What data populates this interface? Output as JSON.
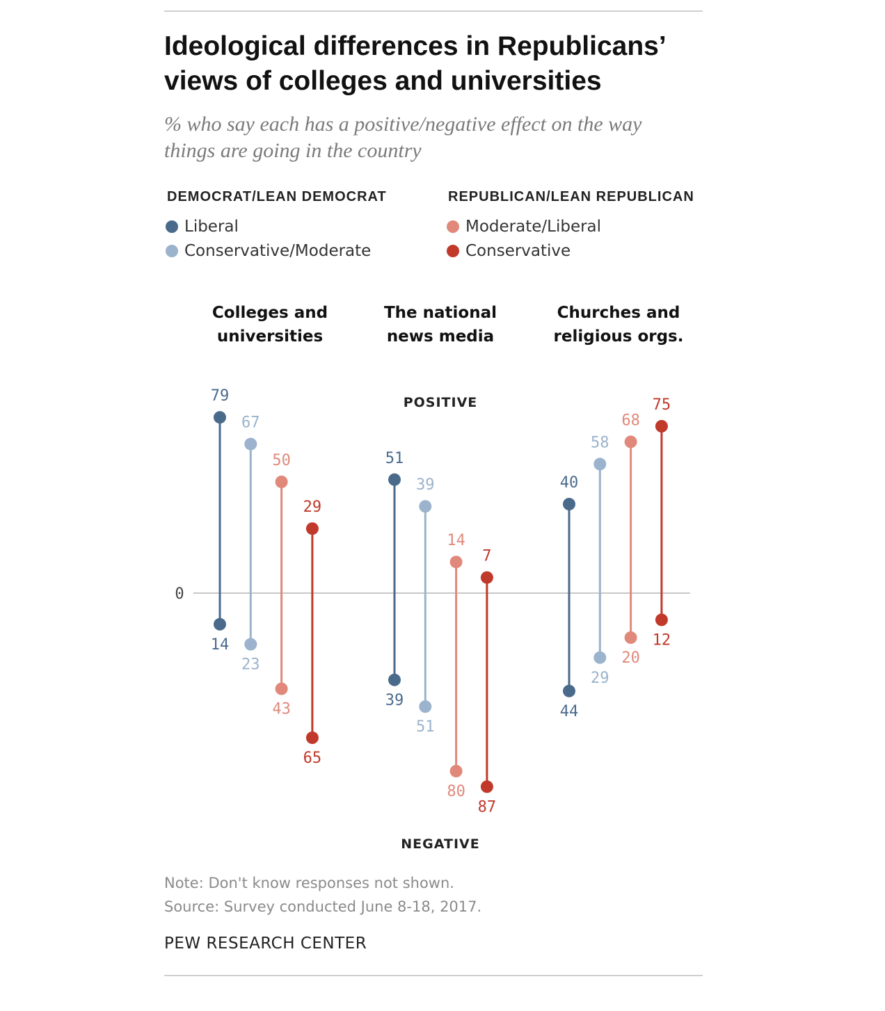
{
  "title": "Ideological differences in Republicans’ views of colleges and universities",
  "subtitle": "% who say each has a positive/negative effect on the way things are going in the country",
  "legend": {
    "groups": [
      {
        "heading": "DEMOCRAT/LEAN DEMOCRAT",
        "items": [
          {
            "label": "Liberal",
            "color": "#4a6a8c"
          },
          {
            "label": "Conservative/Moderate",
            "color": "#9bb3cc"
          }
        ]
      },
      {
        "heading": "REPUBLICAN/LEAN REPUBLICAN",
        "items": [
          {
            "label": "Moderate/Liberal",
            "color": "#e0897b"
          },
          {
            "label": "Conservative",
            "color": "#c0392b"
          }
        ]
      }
    ]
  },
  "labels": {
    "positive": "POSITIVE",
    "negative": "NEGATIVE",
    "zero": "0"
  },
  "chart_data": {
    "type": "dumbbell",
    "categories": [
      "Colleges and universities",
      "The national news media",
      "Churches and religious orgs."
    ],
    "category_lines": [
      [
        "Colleges and",
        "universities"
      ],
      [
        "The national",
        "news media"
      ],
      [
        "Churches and",
        "religious orgs."
      ]
    ],
    "series": [
      {
        "name": "Liberal",
        "color": "#4a6a8c",
        "positive": [
          79,
          51,
          40
        ],
        "negative": [
          14,
          39,
          44
        ]
      },
      {
        "name": "Conservative/Moderate",
        "color": "#9bb3cc",
        "positive": [
          67,
          39,
          58
        ],
        "negative": [
          23,
          51,
          29
        ]
      },
      {
        "name": "Moderate/Liberal",
        "color": "#e0897b",
        "positive": [
          50,
          14,
          68
        ],
        "negative": [
          43,
          80,
          20
        ]
      },
      {
        "name": "Conservative",
        "color": "#c0392b",
        "positive": [
          29,
          7,
          75
        ],
        "negative": [
          65,
          87,
          12
        ]
      }
    ],
    "axis": {
      "zero_line": true
    }
  },
  "notes": {
    "note": "Note: Don't know responses not shown.",
    "source": "Source: Survey conducted June 8-18, 2017."
  },
  "brand": "PEW RESEARCH CENTER"
}
